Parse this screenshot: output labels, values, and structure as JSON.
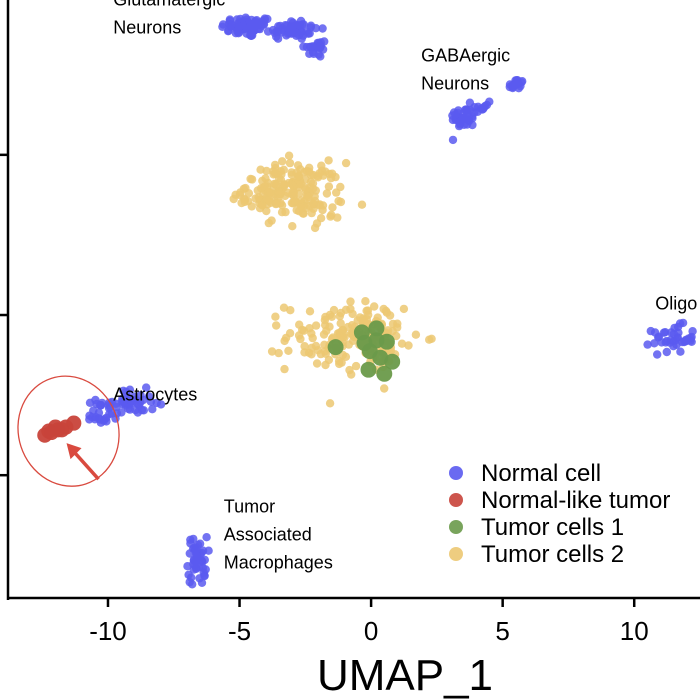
{
  "chart_data": {
    "type": "scatter",
    "xlabel": "UMAP_1",
    "xlim": [
      -13.8,
      12.5
    ],
    "ylim": [
      -10.6,
      11.8
    ],
    "x_ticks": [
      -10,
      -5,
      0,
      5,
      10
    ],
    "x_tick_labels": [
      "-10",
      "-5",
      "0",
      "5",
      "10"
    ],
    "y_ticks": [
      -6,
      0,
      6
    ],
    "grid": false,
    "legend": {
      "position": "bottom-right",
      "entries": [
        {
          "label": "Normal cell",
          "color": "#5a5af0"
        },
        {
          "label": "Normal-like tumor",
          "color": "#c8433a"
        },
        {
          "label": "Tumor cells 1",
          "color": "#6a9a4a"
        },
        {
          "label": "Tumor cells 2",
          "color": "#ecc872"
        }
      ]
    },
    "annotations": [
      {
        "text": [
          "Glutamatergic",
          "Neurons"
        ],
        "x": -9.8,
        "y": 11.6
      },
      {
        "text": [
          "GABAergic",
          "Neurons"
        ],
        "x": 1.9,
        "y": 9.5
      },
      {
        "text": [
          "Oligo"
        ],
        "x": 10.8,
        "y": 0.2
      },
      {
        "text": [
          "Astrocytes"
        ],
        "x": -9.8,
        "y": -3.2
      },
      {
        "text": [
          "Tumor",
          "Associated",
          "Macrophages"
        ],
        "x": -5.6,
        "y": -7.4
      }
    ],
    "highlight": {
      "type": "ellipse",
      "cx": -11.5,
      "cy": 0.1,
      "rx": 1.9,
      "ry": 0.65,
      "color": "#d94a3f",
      "arrow": true
    },
    "series": [
      {
        "color": "#5a5af0",
        "size": 1.0,
        "clusters": [
          {
            "cx": -4.7,
            "cy": 10.8,
            "sx": 0.5,
            "sy": 0.2,
            "n": 70
          },
          {
            "cx": -3.0,
            "cy": 10.7,
            "sx": 0.5,
            "sy": 0.2,
            "n": 55
          },
          {
            "cx": -2.1,
            "cy": 10.0,
            "sx": 0.22,
            "sy": 0.18,
            "n": 22
          },
          {
            "cx": 3.5,
            "cy": 7.4,
            "sx": 0.25,
            "sy": 0.2,
            "n": 35
          },
          {
            "cx": 4.2,
            "cy": 7.8,
            "sx": 0.18,
            "sy": 0.15,
            "n": 12
          },
          {
            "cx": 5.5,
            "cy": 8.6,
            "sx": 0.15,
            "sy": 0.13,
            "n": 18
          },
          {
            "cx": 11.5,
            "cy": -0.9,
            "sx": 0.4,
            "sy": 0.25,
            "n": 40
          },
          {
            "cx": -9.3,
            "cy": -3.3,
            "sx": 0.55,
            "sy": 0.25,
            "n": 55
          },
          {
            "cx": -10.3,
            "cy": -3.8,
            "sx": 0.3,
            "sy": 0.15,
            "n": 15
          },
          {
            "cx": -6.6,
            "cy": -9.2,
            "sx": 0.18,
            "sy": 0.45,
            "n": 45
          }
        ]
      },
      {
        "color": "#c8433a",
        "size": 1.8,
        "points": [
          [
            -12.4,
            -4.5
          ],
          [
            -12.15,
            -4.4
          ],
          [
            -11.9,
            -4.3
          ],
          [
            -11.6,
            -4.2
          ],
          [
            -11.3,
            -4.05
          ],
          [
            -12.0,
            -4.2
          ],
          [
            -12.25,
            -4.35
          ],
          [
            -11.75,
            -4.3
          ]
        ]
      },
      {
        "color": "#ecc872",
        "size": 1.0,
        "clusters": [
          {
            "cx": -3.0,
            "cy": 4.7,
            "sx": 0.95,
            "sy": 0.5,
            "n": 150
          },
          {
            "cx": -4.2,
            "cy": 4.4,
            "sx": 0.35,
            "sy": 0.2,
            "n": 20
          },
          {
            "cx": -2.2,
            "cy": 3.9,
            "sx": 0.35,
            "sy": 0.25,
            "n": 20
          },
          {
            "cx": -1.0,
            "cy": -0.8,
            "sx": 1.1,
            "sy": 0.65,
            "n": 140
          },
          {
            "cx": 0.2,
            "cy": -1.0,
            "sx": 0.7,
            "sy": 0.45,
            "n": 40
          }
        ]
      },
      {
        "color": "#6a9a4a",
        "size": 1.9,
        "points": [
          [
            -1.35,
            -1.2
          ],
          [
            -0.35,
            -0.65
          ],
          [
            0.2,
            -0.5
          ],
          [
            0.6,
            -1.0
          ],
          [
            -0.05,
            -1.35
          ],
          [
            0.35,
            -1.6
          ],
          [
            0.8,
            -1.75
          ],
          [
            -0.1,
            -2.05
          ],
          [
            0.5,
            -2.2
          ],
          [
            0.2,
            -0.95
          ],
          [
            -0.25,
            -1.05
          ]
        ]
      }
    ]
  }
}
